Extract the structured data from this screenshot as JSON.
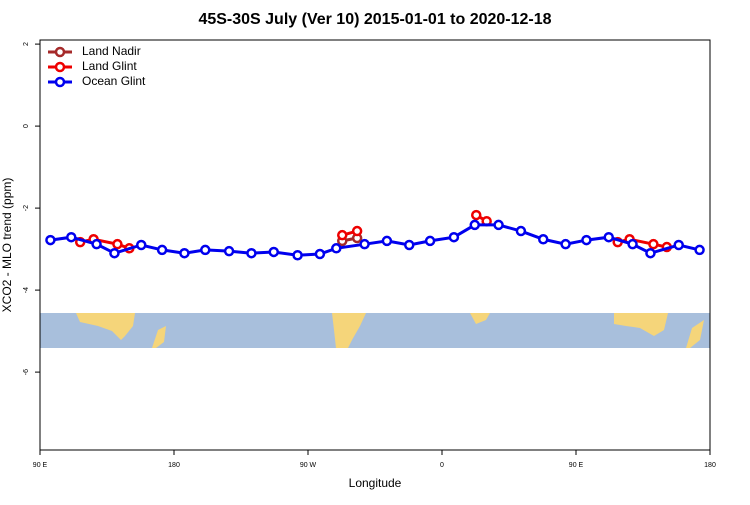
{
  "chart_data": {
    "type": "line",
    "title": "45S-30S July (Ver 10)   2015-01-01 to 2020-12-18",
    "xlabel": "Longitude",
    "ylabel": "XCO2 - MLO trend (ppm)",
    "xlim": [
      90,
      540
    ],
    "ylim": [
      -7.9,
      2.1
    ],
    "xticks": [
      {
        "value": 90,
        "label": "90 E"
      },
      {
        "value": 180,
        "label": "180"
      },
      {
        "value": 270,
        "label": "90 W"
      },
      {
        "value": 360,
        "label": "0"
      },
      {
        "value": 450,
        "label": "90 E"
      },
      {
        "value": 540,
        "label": "180"
      }
    ],
    "yticks": [
      2,
      0,
      -2,
      -4,
      -6
    ],
    "legend": "top-left",
    "series": [
      {
        "name": "Land Nadir",
        "color": "#a52a2a",
        "x": [
          293,
          303
        ],
        "values": [
          -2.8,
          -2.73
        ]
      },
      {
        "name": "Land Glint",
        "color": "#ee0000",
        "x": [
          117,
          126,
          142,
          150,
          null,
          293,
          303,
          null,
          383,
          390,
          null,
          478,
          486,
          502,
          511
        ],
        "values": [
          -2.83,
          -2.76,
          -2.88,
          -2.98,
          null,
          -2.66,
          -2.56,
          null,
          -2.17,
          -2.32,
          null,
          -2.83,
          -2.76,
          -2.88,
          -2.95
        ]
      },
      {
        "name": "Ocean Glint",
        "color": "#0000ee",
        "x": [
          97,
          111,
          128,
          140,
          158,
          172,
          187,
          201,
          217,
          232,
          247,
          263,
          278,
          289,
          308,
          323,
          338,
          352,
          368,
          382,
          398,
          413,
          428,
          443,
          457,
          472,
          488,
          500,
          519,
          533
        ],
        "values": [
          -2.78,
          -2.71,
          -2.88,
          -3.1,
          -2.9,
          -3.02,
          -3.1,
          -3.02,
          -3.05,
          -3.1,
          -3.07,
          -3.15,
          -3.12,
          -2.98,
          -2.88,
          -2.8,
          -2.9,
          -2.8,
          -2.71,
          -2.41,
          -2.41,
          -2.56,
          -2.76,
          -2.88,
          -2.78,
          -2.71,
          -2.88,
          -3.1,
          -2.9,
          -3.02
        ]
      }
    ]
  }
}
